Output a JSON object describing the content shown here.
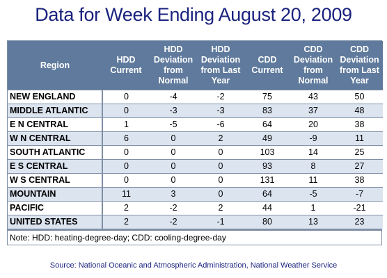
{
  "chart_data": {
    "type": "table",
    "title": "Data for Week Ending August 20, 2009",
    "columns": [
      "Region",
      "HDD Current",
      "HDD Deviation from Normal",
      "HDD Deviation from Last Year",
      "CDD Current",
      "CDD Deviation from Normal",
      "CDD Deviation from Last Year"
    ],
    "column_lines": [
      [
        "Region"
      ],
      [
        "HDD",
        "Current"
      ],
      [
        "HDD",
        "Deviation",
        "from",
        "Normal"
      ],
      [
        "HDD",
        "Deviation",
        "from Last",
        "Year"
      ],
      [
        "CDD",
        "Current"
      ],
      [
        "CDD",
        "Deviation",
        "from",
        "Normal"
      ],
      [
        "CDD",
        "Deviation",
        "from Last",
        "Year"
      ]
    ],
    "rows": [
      {
        "region": "NEW ENGLAND",
        "values": [
          "0",
          "-4",
          "-2",
          "75",
          "43",
          "50"
        ]
      },
      {
        "region": "MIDDLE ATLANTIC",
        "values": [
          "0",
          "-3",
          "-3",
          "83",
          "37",
          "48"
        ]
      },
      {
        "region": "E N CENTRAL",
        "values": [
          "1",
          "-5",
          "-6",
          "64",
          "20",
          "38"
        ]
      },
      {
        "region": "W N CENTRAL",
        "values": [
          "6",
          "0",
          "2",
          "49",
          "-9",
          "11"
        ]
      },
      {
        "region": "SOUTH ATLANTIC",
        "values": [
          "0",
          "0",
          "0",
          "103",
          "14",
          "25"
        ]
      },
      {
        "region": "E S CENTRAL",
        "values": [
          "0",
          "0",
          "0",
          "93",
          "8",
          "27"
        ]
      },
      {
        "region": "W S CENTRAL",
        "values": [
          "0",
          "0",
          "0",
          "131",
          "11",
          "38"
        ]
      },
      {
        "region": "MOUNTAIN",
        "values": [
          "11",
          "3",
          "0",
          "64",
          "-5",
          "-7"
        ]
      },
      {
        "region": "PACIFIC",
        "values": [
          "2",
          "-2",
          "2",
          "44",
          "1",
          "-21"
        ]
      },
      {
        "region": "UNITED STATES",
        "values": [
          "2",
          "-2",
          "-1",
          "80",
          "13",
          "23"
        ]
      }
    ],
    "note": "Note: HDD: heating-degree-day; CDD: cooling-degree-day",
    "source": "Source:  National Oceanic and Atmospheric Administration, National Weather Service"
  },
  "colors": {
    "title": "#1a237e",
    "header_bg": "#5f7a9c",
    "stripe": "#dce4f0",
    "rule": "#7f8fa6"
  }
}
